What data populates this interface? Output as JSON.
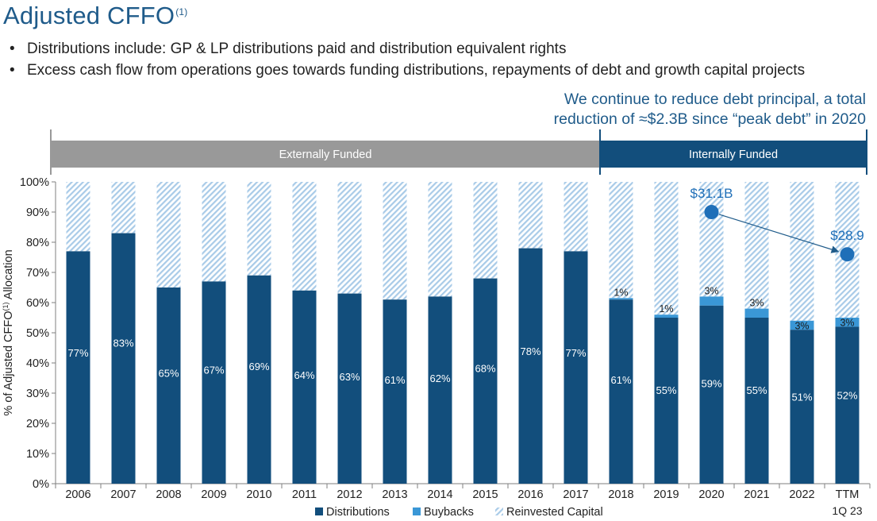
{
  "page": {
    "title": "Adjusted CFFO",
    "title_footnote": "(1)",
    "bullets": [
      "Distributions include: GP & LP distributions paid and distribution equivalent rights",
      "Excess cash flow from operations goes towards funding distributions, repayments of debt and growth capital projects"
    ],
    "callout_lines": [
      "We continue to reduce debt principal, a total",
      "reduction of ≈$2.3B since “peak debt” in 2020"
    ]
  },
  "chart_data": {
    "type": "bar",
    "stacked": true,
    "ylabel": "% of Adjusted CFFO",
    "ylabel_footnote": "(1)",
    "ylabel_suffix": "Allocation",
    "ylim": [
      0,
      100
    ],
    "yticks": [
      "0%",
      "10%",
      "20%",
      "30%",
      "40%",
      "50%",
      "60%",
      "70%",
      "80%",
      "90%",
      "100%"
    ],
    "categories": [
      "2006",
      "2007",
      "2008",
      "2009",
      "2010",
      "2011",
      "2012",
      "2013",
      "2014",
      "2015",
      "2016",
      "2017",
      "2018",
      "2019",
      "2020",
      "2021",
      "2022",
      "TTM"
    ],
    "category_sublabel": {
      "category": "TTM",
      "text": "1Q 23"
    },
    "series": [
      {
        "name": "Distributions",
        "color": "#124e7c",
        "values": [
          77,
          83,
          65,
          67,
          69,
          64,
          63,
          61,
          62,
          68,
          78,
          77,
          61,
          55,
          59,
          55,
          51,
          52
        ],
        "labels": [
          "77%",
          "83%",
          "65%",
          "67%",
          "69%",
          "64%",
          "63%",
          "61%",
          "62%",
          "68%",
          "78%",
          "77%",
          "61%",
          "55%",
          "59%",
          "55%",
          "51%",
          "52%"
        ]
      },
      {
        "name": "Buybacks",
        "color": "#3a97d6",
        "values": [
          0,
          0,
          0,
          0,
          0,
          0,
          0,
          0,
          0,
          0,
          0,
          0,
          0.5,
          1,
          3,
          3,
          3,
          3
        ],
        "labels": [
          "",
          "",
          "",
          "",
          "",
          "",
          "",
          "",
          "",
          "",
          "",
          "",
          "1%",
          "1%",
          "3%",
          "3%",
          "3%",
          "3%"
        ]
      },
      {
        "name": "Reinvested Capital",
        "color": "#a9cbe8",
        "pattern": "hatched",
        "values": [
          23,
          17,
          35,
          33,
          31,
          36,
          37,
          39,
          38,
          32,
          22,
          23,
          38.5,
          44,
          38,
          42,
          46,
          45
        ]
      }
    ],
    "legend": {
      "position": "bottom",
      "items": [
        "Distributions",
        "Buybacks",
        "Reinvested Capital"
      ]
    },
    "funding_bands": [
      {
        "label": "Externally Funded",
        "from": "2006",
        "to": "2017",
        "color": "#999999"
      },
      {
        "label": "Internally Funded",
        "from": "2018",
        "to": "TTM",
        "color": "#124e7c"
      }
    ],
    "debt_markers": [
      {
        "category": "2020",
        "y": 90,
        "label": "$31.1B"
      },
      {
        "category": "TTM",
        "y": 76,
        "label": "$28.9"
      }
    ],
    "arrow": {
      "from": "2020",
      "to": "TTM"
    }
  }
}
